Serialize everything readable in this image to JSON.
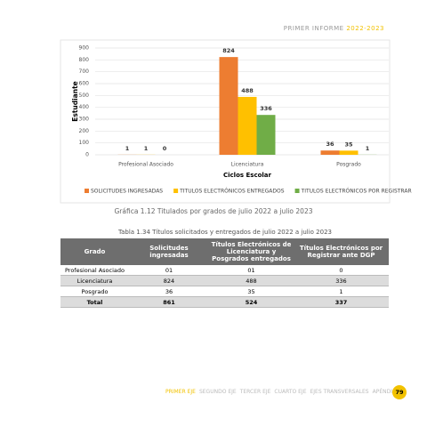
{
  "header": {
    "title": "PRIMER INFORME",
    "period": "2022-2023"
  },
  "chart": {
    "type": "bar",
    "ylabel": "Estudiante",
    "xlabel": "Ciclos Escolar",
    "categories": [
      "Profesional Asociado",
      "Licenciatura",
      "Posgrado"
    ],
    "series": [
      {
        "name": "SOLICITUDES INGRESADAS",
        "color": "#ed7d31",
        "values": [
          1,
          824,
          36
        ]
      },
      {
        "name": "TITULOS ELECTRÓNICOS ENTREGADOS",
        "color": "#ffc000",
        "values": [
          1,
          488,
          35
        ]
      },
      {
        "name": "TITULOS ELECTRÓNICOS POR REGISTRAR",
        "color": "#70ad47",
        "values": [
          0,
          336,
          1
        ]
      }
    ],
    "ylim": [
      0,
      900
    ],
    "yticks": [
      0,
      100,
      200,
      300,
      400,
      500,
      600,
      700,
      800,
      900
    ],
    "grid": true
  },
  "chart_caption": "Gráfica 1.12 Titulados por grados de julio 2022 a julio 2023",
  "table": {
    "title": "Tabla 1.34 Títulos solicitados y entregados de julio 2022 a julio 2023",
    "columns": [
      "Grado",
      "Solicitudes ingresadas",
      "Títulos Electrónicos de Licenciatura y Posgrados entregados",
      "Títulos Electrónicos por Registrar ante DGP"
    ],
    "rows": [
      [
        "Profesional Asociado",
        "01",
        "01",
        "0"
      ],
      [
        "Licenciatura",
        "824",
        "488",
        "336"
      ],
      [
        "Posgrado",
        "36",
        "35",
        "1"
      ]
    ],
    "total": [
      "Total",
      "861",
      "524",
      "337"
    ]
  },
  "footer": {
    "nav": [
      "PRIMER EJE",
      "SEGUNDO EJE",
      "TERCER EJE",
      "CUARTO EJE",
      "EJES TRANSVERSALES",
      "APÉNDICE"
    ],
    "page": "79"
  }
}
